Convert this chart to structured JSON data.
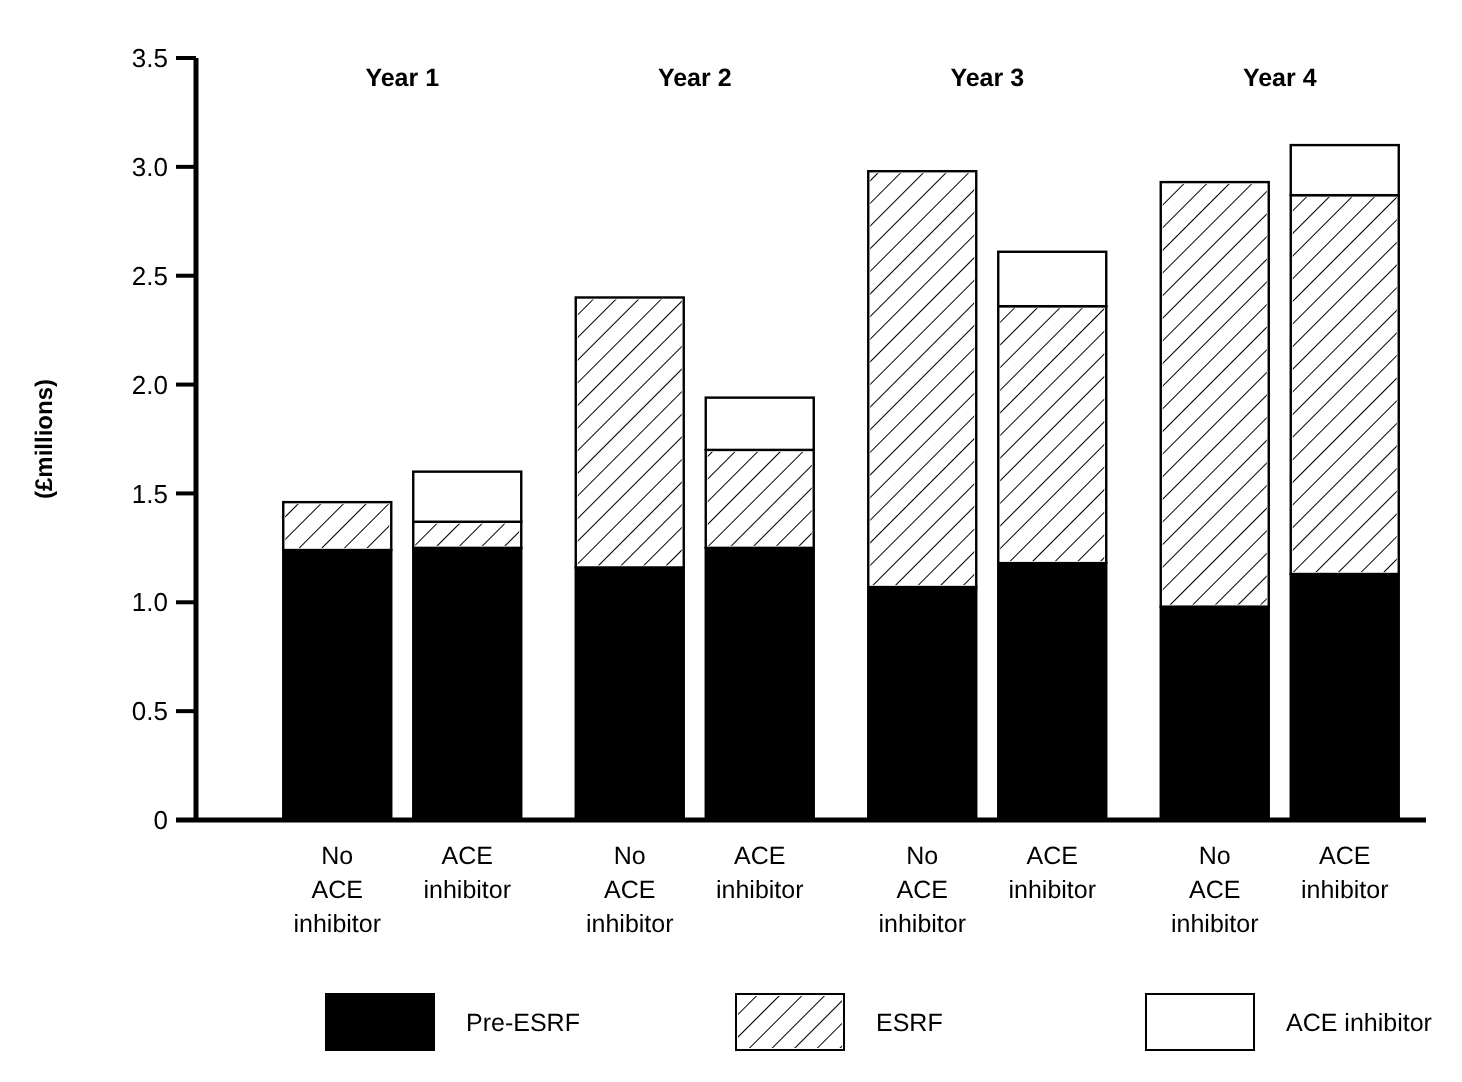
{
  "chart_data": {
    "type": "bar",
    "stacked": true,
    "ylabel": "(£millions)",
    "categories": [
      "No ACE inhibitor",
      "ACE inhibitor",
      "No ACE inhibitor",
      "ACE inhibitor",
      "No ACE inhibitor",
      "ACE inhibitor",
      "No ACE inhibitor",
      "ACE inhibitor"
    ],
    "series": [
      {
        "name": "Pre-ESRF",
        "color": "#000000",
        "values": [
          1.24,
          1.25,
          1.16,
          1.25,
          1.07,
          1.18,
          0.98,
          1.13
        ]
      },
      {
        "name": "ESRF",
        "color": "#ffffff",
        "values": [
          0.22,
          0.12,
          1.24,
          0.45,
          1.91,
          1.18,
          1.95,
          1.74
        ]
      },
      {
        "name": "ACE inhibitor",
        "color": "#ffffff",
        "values": [
          null,
          0.23,
          null,
          0.24,
          null,
          0.25,
          null,
          0.23
        ]
      }
    ],
    "annotations": [
      "Year 1",
      "Year 2",
      "Year 3",
      "Year 4"
    ],
    "ylim": [
      0,
      3.5
    ],
    "yticks": [
      0,
      0.5,
      {
        "value": 1,
        "label": "1.0"
      },
      1.5,
      {
        "value": 2,
        "label": "2.0"
      },
      2.5,
      {
        "value": 3,
        "label": "3.0"
      },
      3.5
    ],
    "grid": false,
    "legend": "bottom"
  }
}
